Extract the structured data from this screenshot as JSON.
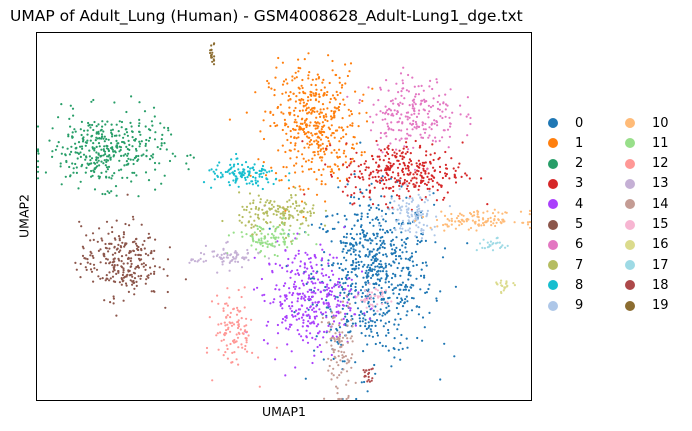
{
  "chart_data": {
    "type": "scatter",
    "title": "UMAP of Adult_Lung (Human) - GSM4008628_Adult-Lung1_dge.txt",
    "xlabel": "UMAP1",
    "ylabel": "UMAP2",
    "xticks": false,
    "yticks": false,
    "grid": false,
    "legend_position": "right, 2 columns",
    "series": [
      {
        "name": "0",
        "color": "#1f77b4",
        "cx": 0.68,
        "cy": 0.34,
        "sx": 0.06,
        "sy": 0.11,
        "n": 700
      },
      {
        "name": "1",
        "color": "#ff7f0e",
        "cx": 0.56,
        "cy": 0.75,
        "sx": 0.045,
        "sy": 0.08,
        "n": 450
      },
      {
        "name": "2",
        "color": "#279e68",
        "cx": 0.14,
        "cy": 0.68,
        "sx": 0.06,
        "sy": 0.05,
        "n": 380
      },
      {
        "name": "3",
        "color": "#d62728",
        "cx": 0.74,
        "cy": 0.62,
        "sx": 0.06,
        "sy": 0.04,
        "n": 320
      },
      {
        "name": "4",
        "color": "#aa40fc",
        "cx": 0.55,
        "cy": 0.28,
        "sx": 0.045,
        "sy": 0.07,
        "n": 330
      },
      {
        "name": "5",
        "color": "#8c564b",
        "cx": 0.17,
        "cy": 0.38,
        "sx": 0.04,
        "sy": 0.05,
        "n": 260
      },
      {
        "name": "6",
        "color": "#e377c2",
        "cx": 0.76,
        "cy": 0.78,
        "sx": 0.045,
        "sy": 0.05,
        "n": 220
      },
      {
        "name": "7",
        "color": "#b5bd61",
        "cx": 0.49,
        "cy": 0.51,
        "sx": 0.04,
        "sy": 0.025,
        "n": 150
      },
      {
        "name": "8",
        "color": "#17becf",
        "cx": 0.42,
        "cy": 0.61,
        "sx": 0.04,
        "sy": 0.018,
        "n": 120
      },
      {
        "name": "9",
        "color": "#aec7e8",
        "cx": 0.76,
        "cy": 0.51,
        "sx": 0.025,
        "sy": 0.03,
        "n": 100
      },
      {
        "name": "10",
        "color": "#ffbb78",
        "cx": 0.89,
        "cy": 0.49,
        "sx": 0.045,
        "sy": 0.012,
        "n": 110
      },
      {
        "name": "11",
        "color": "#98df8a",
        "cx": 0.47,
        "cy": 0.44,
        "sx": 0.035,
        "sy": 0.02,
        "n": 100
      },
      {
        "name": "12",
        "color": "#ff9896",
        "cx": 0.4,
        "cy": 0.19,
        "sx": 0.02,
        "sy": 0.05,
        "n": 110
      },
      {
        "name": "13",
        "color": "#c5b0d5",
        "cx": 0.38,
        "cy": 0.39,
        "sx": 0.035,
        "sy": 0.015,
        "n": 70
      },
      {
        "name": "14",
        "color": "#c49c94",
        "cx": 0.61,
        "cy": 0.13,
        "sx": 0.015,
        "sy": 0.07,
        "n": 100
      },
      {
        "name": "15",
        "color": "#f7b6d2",
        "cx": 0.68,
        "cy": 0.28,
        "sx": 0.015,
        "sy": 0.015,
        "n": 40
      },
      {
        "name": "16",
        "color": "#dbdb8d",
        "cx": 0.945,
        "cy": 0.31,
        "sx": 0.008,
        "sy": 0.008,
        "n": 20
      },
      {
        "name": "17",
        "color": "#9edae5",
        "cx": 0.92,
        "cy": 0.42,
        "sx": 0.015,
        "sy": 0.01,
        "n": 25
      },
      {
        "name": "18",
        "color": "#ad494a",
        "cx": 0.67,
        "cy": 0.075,
        "sx": 0.006,
        "sy": 0.01,
        "n": 18
      },
      {
        "name": "19",
        "color": "#8c6d31",
        "cx": 0.355,
        "cy": 0.94,
        "sx": 0.004,
        "sy": 0.015,
        "n": 20
      }
    ]
  }
}
